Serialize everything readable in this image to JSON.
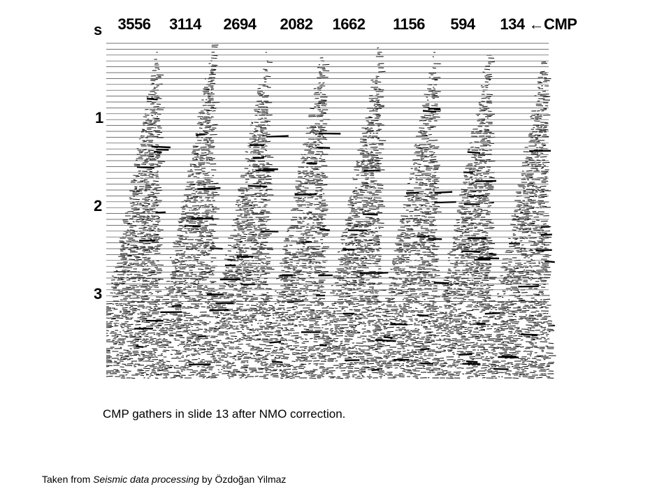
{
  "figure": {
    "cmp_labels": [
      "3556",
      "3114",
      "2694",
      "2082",
      "1662",
      "1156",
      "594",
      "134"
    ],
    "cmp_marker": "←CMP",
    "time_axis": {
      "unit_label": "s",
      "ticks": [
        "1",
        "2",
        "3"
      ]
    }
  },
  "caption": "CMP gathers in slide 13 after NMO correction.",
  "credit": {
    "prefix": "Taken from ",
    "title": "Seismic data processing",
    "suffix": " by Özdoğan Yilmaz"
  }
}
